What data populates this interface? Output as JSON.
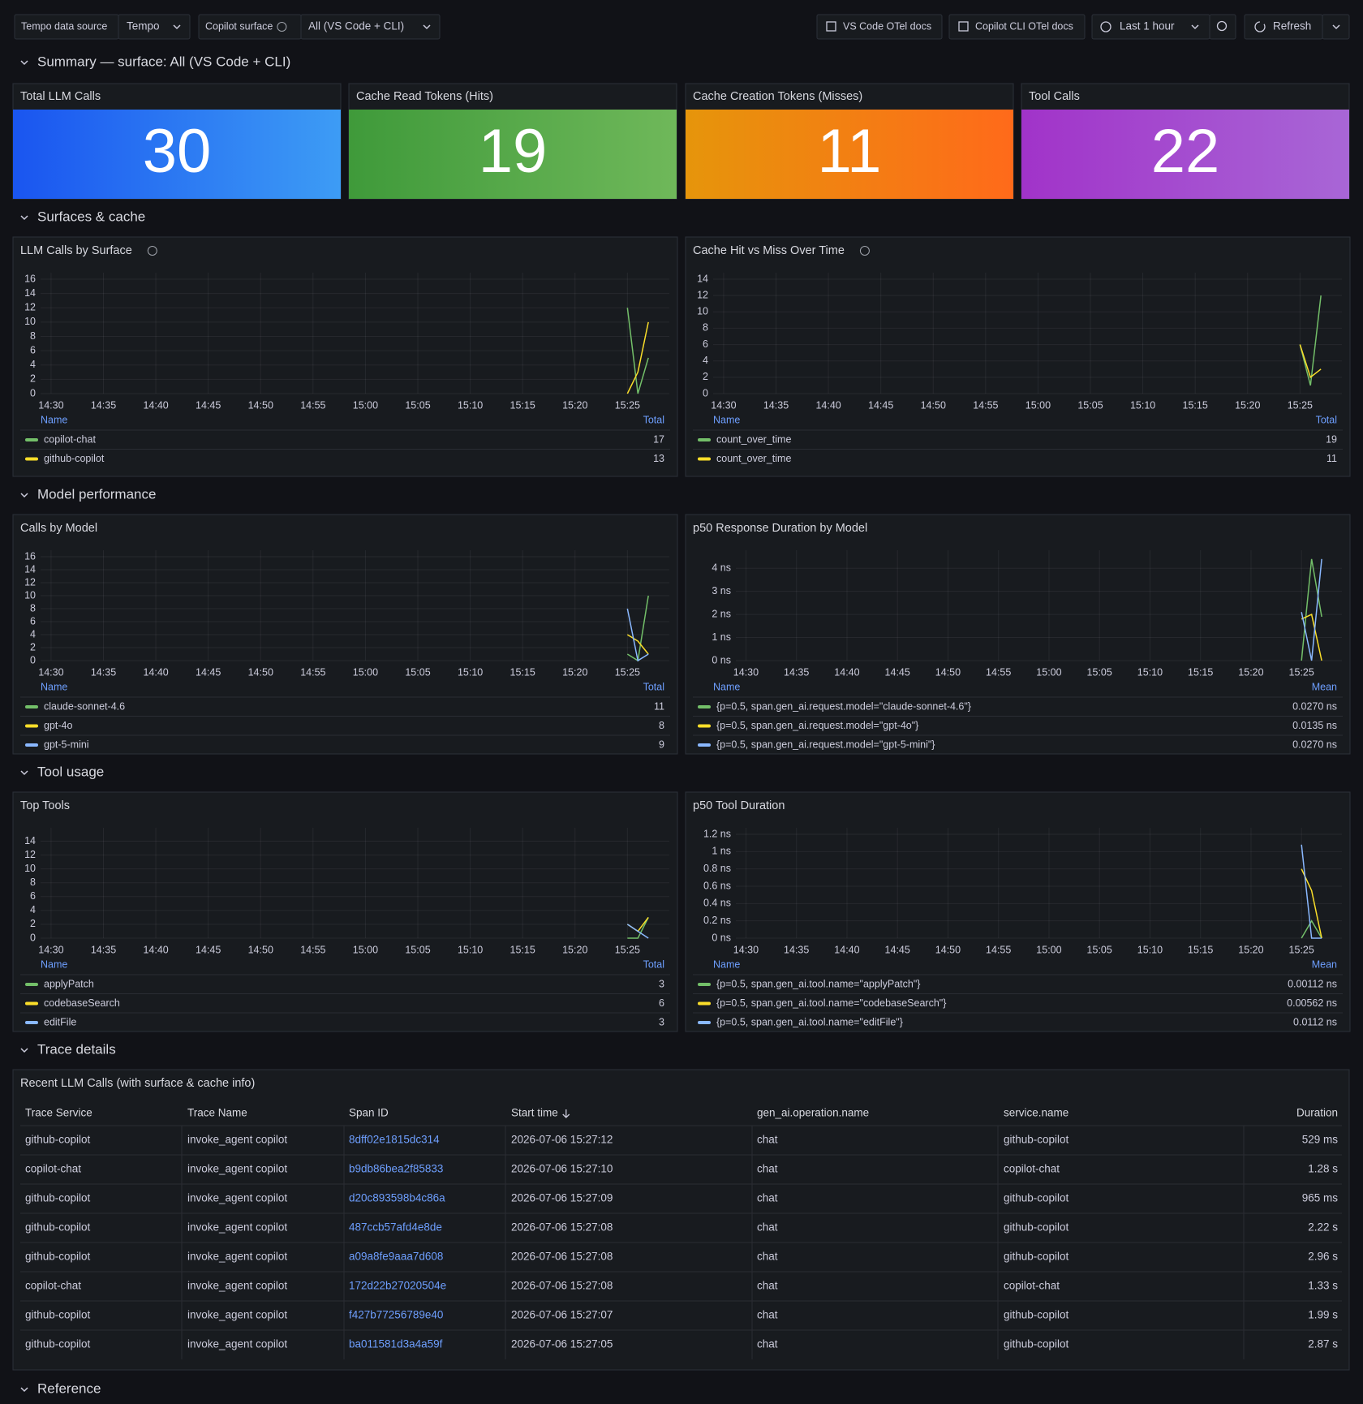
{
  "toolbar": {
    "datasource_label": "Tempo data source",
    "datasource_value": "Tempo",
    "surface_label": "Copilot surface",
    "surface_value": "All (VS Code + CLI)",
    "links": [
      "VS Code OTel docs",
      "Copilot CLI OTel docs"
    ],
    "time_range": "Last 1 hour",
    "refresh": "Refresh"
  },
  "sections": [
    "Summary — surface: All (VS Code + CLI)",
    "Surfaces & cache",
    "Model performance",
    "Tool usage",
    "Trace details",
    "Reference"
  ],
  "stats": [
    {
      "title": "Total LLM Calls",
      "value": 30,
      "colors": [
        "#1a55f0",
        "#3d9cf5"
      ]
    },
    {
      "title": "Cache Read Tokens (Hits)",
      "value": 19,
      "colors": [
        "#3f9a3a",
        "#6fb85a"
      ]
    },
    {
      "title": "Cache Creation Tokens (Misses)",
      "value": 11,
      "colors": [
        "#e6950b",
        "#ff6a1a"
      ]
    },
    {
      "title": "Tool Calls",
      "value": 22,
      "colors": [
        "#a133c9",
        "#a866d6"
      ]
    }
  ],
  "chart_data": [
    {
      "type": "line",
      "title": "LLM Calls by Surface",
      "info": true,
      "x": [
        "15:25",
        "15:26",
        "15:27"
      ],
      "xlim": [
        "14:29",
        "15:29"
      ],
      "xticks": [
        "14:30",
        "14:35",
        "14:40",
        "14:45",
        "14:50",
        "14:55",
        "15:00",
        "15:05",
        "15:10",
        "15:15",
        "15:20",
        "15:25"
      ],
      "ylim": [
        0,
        16
      ],
      "yticks": [
        0,
        2,
        4,
        6,
        8,
        10,
        12,
        14,
        16
      ],
      "legend_columns": [
        "Name",
        "Total"
      ],
      "series": [
        {
          "name": "copilot-chat",
          "color": "#73bf69",
          "values": [
            12,
            0,
            5
          ],
          "legend_value": 17
        },
        {
          "name": "github-copilot",
          "color": "#fade2a",
          "values": [
            0,
            3,
            10
          ],
          "legend_value": 13
        }
      ]
    },
    {
      "type": "line",
      "title": "Cache Hit vs Miss Over Time",
      "info": true,
      "x": [
        "15:25",
        "15:26",
        "15:27"
      ],
      "xlim": [
        "14:29",
        "15:29"
      ],
      "xticks": [
        "14:30",
        "14:35",
        "14:40",
        "14:45",
        "14:50",
        "14:55",
        "15:00",
        "15:05",
        "15:10",
        "15:15",
        "15:20",
        "15:25"
      ],
      "ylim": [
        0,
        14
      ],
      "yticks": [
        0,
        2,
        4,
        6,
        8,
        10,
        12,
        14
      ],
      "legend_columns": [
        "Name",
        "Total"
      ],
      "series": [
        {
          "name": "count_over_time",
          "color": "#73bf69",
          "values": [
            6,
            1,
            12
          ],
          "legend_value": 19
        },
        {
          "name": "count_over_time",
          "color": "#fade2a",
          "values": [
            6,
            2,
            3
          ],
          "legend_value": 11
        }
      ]
    },
    {
      "type": "line",
      "title": "Calls by Model",
      "info": false,
      "x": [
        "15:25",
        "15:26",
        "15:27"
      ],
      "xlim": [
        "14:29",
        "15:29"
      ],
      "xticks": [
        "14:30",
        "14:35",
        "14:40",
        "14:45",
        "14:50",
        "14:55",
        "15:00",
        "15:05",
        "15:10",
        "15:15",
        "15:20",
        "15:25"
      ],
      "ylim": [
        0,
        16
      ],
      "yticks": [
        0,
        2,
        4,
        6,
        8,
        10,
        12,
        14,
        16
      ],
      "legend_columns": [
        "Name",
        "Total"
      ],
      "series": [
        {
          "name": "claude-sonnet-4.6",
          "color": "#73bf69",
          "values": [
            1,
            0,
            10
          ],
          "legend_value": 11
        },
        {
          "name": "gpt-4o",
          "color": "#fade2a",
          "values": [
            4,
            3,
            1
          ],
          "legend_value": 8
        },
        {
          "name": "gpt-5-mini",
          "color": "#8ab8ff",
          "values": [
            8,
            0,
            1
          ],
          "legend_value": 9
        }
      ]
    },
    {
      "type": "line",
      "title": "p50 Response Duration by Model",
      "info": false,
      "x": [
        "15:25",
        "15:26",
        "15:27"
      ],
      "xlim": [
        "14:29",
        "15:29"
      ],
      "xticks": [
        "14:30",
        "14:35",
        "14:40",
        "14:45",
        "14:50",
        "14:55",
        "15:00",
        "15:05",
        "15:10",
        "15:15",
        "15:20",
        "15:25"
      ],
      "ylim": [
        0,
        4.5
      ],
      "yticks": [
        {
          "value": 0,
          "label": "0 ns"
        },
        {
          "value": 1,
          "label": "1 ns"
        },
        {
          "value": 2,
          "label": "2 ns"
        },
        {
          "value": 3,
          "label": "3 ns"
        },
        {
          "value": 4,
          "label": "4 ns"
        }
      ],
      "legend_columns": [
        "Name",
        "Mean"
      ],
      "series": [
        {
          "name": "{p=0.5, span.gen_ai.request.model=\"claude-sonnet-4.6\"}",
          "color": "#73bf69",
          "values": [
            0,
            4.4,
            1.9
          ],
          "legend_value": "0.0270 ns"
        },
        {
          "name": "{p=0.5, span.gen_ai.request.model=\"gpt-4o\"}",
          "color": "#fade2a",
          "values": [
            1.8,
            2,
            0
          ],
          "legend_value": "0.0135 ns"
        },
        {
          "name": "{p=0.5, span.gen_ai.request.model=\"gpt-5-mini\"}",
          "color": "#8ab8ff",
          "values": [
            2.1,
            0,
            4.4
          ],
          "legend_value": "0.0270 ns"
        }
      ]
    },
    {
      "type": "line",
      "title": "Top Tools",
      "info": false,
      "x": [
        "15:25",
        "15:26",
        "15:27"
      ],
      "xlim": [
        "14:29",
        "15:29"
      ],
      "xticks": [
        "14:30",
        "14:35",
        "14:40",
        "14:45",
        "14:50",
        "14:55",
        "15:00",
        "15:05",
        "15:10",
        "15:15",
        "15:20",
        "15:25"
      ],
      "ylim": [
        0,
        15
      ],
      "yticks": [
        0,
        2,
        4,
        6,
        8,
        10,
        12,
        14
      ],
      "legend_columns": [
        "Name",
        "Total"
      ],
      "series": [
        {
          "name": "applyPatch",
          "color": "#73bf69",
          "values": [
            0,
            0,
            3
          ],
          "legend_value": 3
        },
        {
          "name": "codebaseSearch",
          "color": "#fade2a",
          "values": [
            2,
            1,
            3
          ],
          "legend_value": 6
        },
        {
          "name": "editFile",
          "color": "#8ab8ff",
          "values": [
            2,
            1,
            0
          ],
          "legend_value": 3
        }
      ]
    },
    {
      "type": "line",
      "title": "p50 Tool Duration",
      "info": false,
      "x": [
        "15:25",
        "15:26",
        "15:27"
      ],
      "xlim": [
        "14:29",
        "15:29"
      ],
      "xticks": [
        "14:30",
        "14:35",
        "14:40",
        "14:45",
        "14:50",
        "14:55",
        "15:00",
        "15:05",
        "15:10",
        "15:15",
        "15:20",
        "15:25"
      ],
      "ylim": [
        0,
        1.2
      ],
      "yticks": [
        {
          "value": 0,
          "label": "0 ns"
        },
        {
          "value": 0.2,
          "label": "0.2 ns"
        },
        {
          "value": 0.4,
          "label": "0.4 ns"
        },
        {
          "value": 0.6,
          "label": "0.6 ns"
        },
        {
          "value": 0.8,
          "label": "0.8 ns"
        },
        {
          "value": 1,
          "label": "1 ns"
        },
        {
          "value": 1.2,
          "label": "1.2 ns"
        }
      ],
      "legend_columns": [
        "Name",
        "Mean"
      ],
      "series": [
        {
          "name": "{p=0.5, span.gen_ai.tool.name=\"applyPatch\"}",
          "color": "#73bf69",
          "values": [
            0,
            0.2,
            0
          ],
          "legend_value": "0.00112 ns"
        },
        {
          "name": "{p=0.5, span.gen_ai.tool.name=\"codebaseSearch\"}",
          "color": "#fade2a",
          "values": [
            0.8,
            0.55,
            0
          ],
          "legend_value": "0.00562 ns"
        },
        {
          "name": "{p=0.5, span.gen_ai.tool.name=\"editFile\"}",
          "color": "#8ab8ff",
          "values": [
            1.08,
            0,
            0
          ],
          "legend_value": "0.0112 ns"
        }
      ]
    }
  ],
  "table": {
    "title": "Recent LLM Calls (with surface & cache info)",
    "columns": [
      "Trace Service",
      "Trace Name",
      "Span ID",
      "Start time",
      "gen_ai.operation.name",
      "service.name",
      "Duration"
    ],
    "rows": [
      [
        "github-copilot",
        "invoke_agent copilot",
        "8dff02e1815dc314",
        "2026-07-06 15:27:12",
        "chat",
        "github-copilot",
        "529 ms"
      ],
      [
        "copilot-chat",
        "invoke_agent copilot",
        "b9db86bea2f85833",
        "2026-07-06 15:27:10",
        "chat",
        "copilot-chat",
        "1.28 s"
      ],
      [
        "github-copilot",
        "invoke_agent copilot",
        "d20c893598b4c86a",
        "2026-07-06 15:27:09",
        "chat",
        "github-copilot",
        "965 ms"
      ],
      [
        "github-copilot",
        "invoke_agent copilot",
        "487ccb57afd4e8de",
        "2026-07-06 15:27:08",
        "chat",
        "github-copilot",
        "2.22 s"
      ],
      [
        "github-copilot",
        "invoke_agent copilot",
        "a09a8fe9aaa7d608",
        "2026-07-06 15:27:08",
        "chat",
        "github-copilot",
        "2.96 s"
      ],
      [
        "copilot-chat",
        "invoke_agent copilot",
        "172d22b27020504e",
        "2026-07-06 15:27:08",
        "chat",
        "copilot-chat",
        "1.33 s"
      ],
      [
        "github-copilot",
        "invoke_agent copilot",
        "f427b77256789e40",
        "2026-07-06 15:27:07",
        "chat",
        "github-copilot",
        "1.99 s"
      ],
      [
        "github-copilot",
        "invoke_agent copilot",
        "ba011581d3a4a59f",
        "2026-07-06 15:27:05",
        "chat",
        "github-copilot",
        "2.87 s"
      ]
    ]
  }
}
